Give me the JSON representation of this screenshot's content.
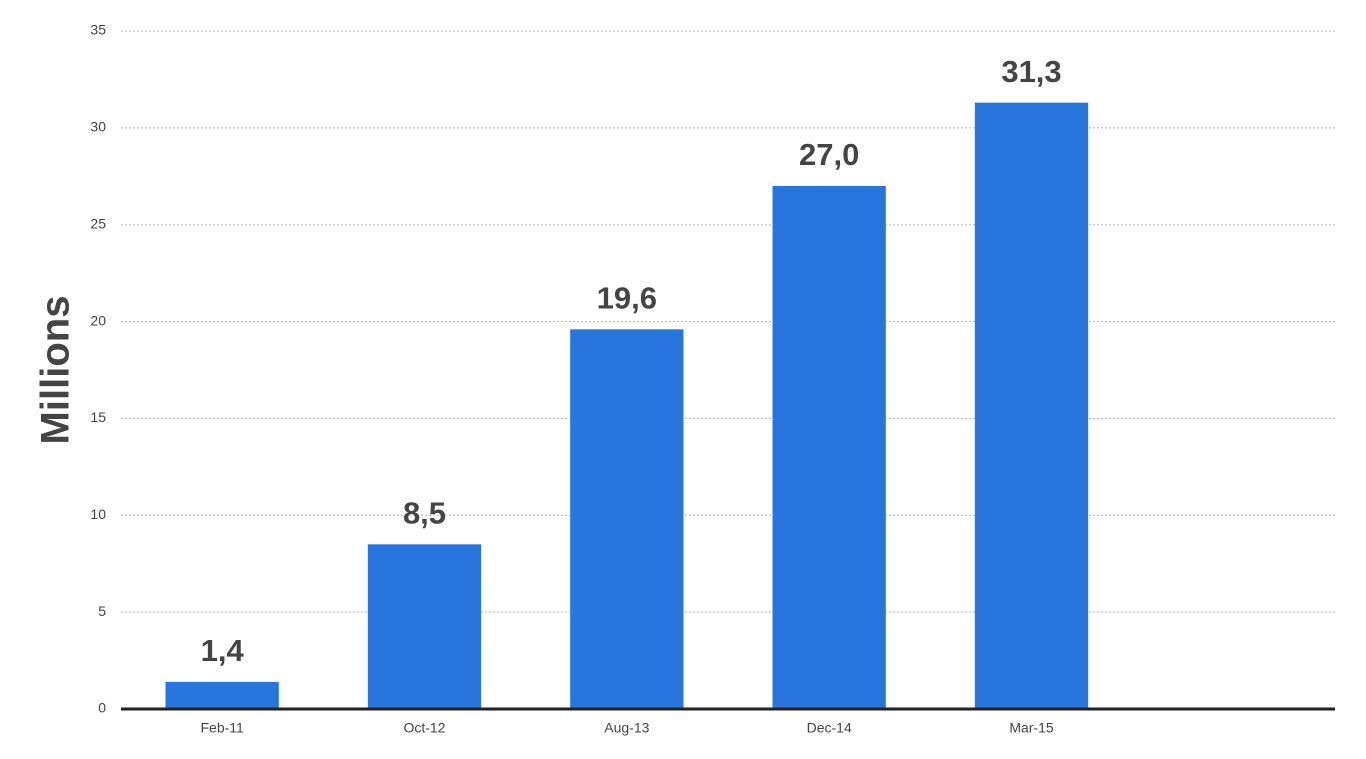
{
  "chart_data": {
    "type": "bar",
    "y_label": "Millions",
    "categories": [
      "Feb-11",
      "Oct-12",
      "Aug-13",
      "Dec-14",
      "Mar-15",
      null
    ],
    "values": [
      1.4,
      8.5,
      19.6,
      27.0,
      31.3,
      null
    ],
    "value_labels": [
      "1,4",
      "8,5",
      "19,6",
      "27,0",
      "31,3",
      null
    ],
    "color": "#2875dd",
    "ylim": [
      0,
      35
    ],
    "yticks": [
      0,
      5,
      10,
      15,
      20,
      25,
      30,
      35
    ],
    "grid": true
  }
}
